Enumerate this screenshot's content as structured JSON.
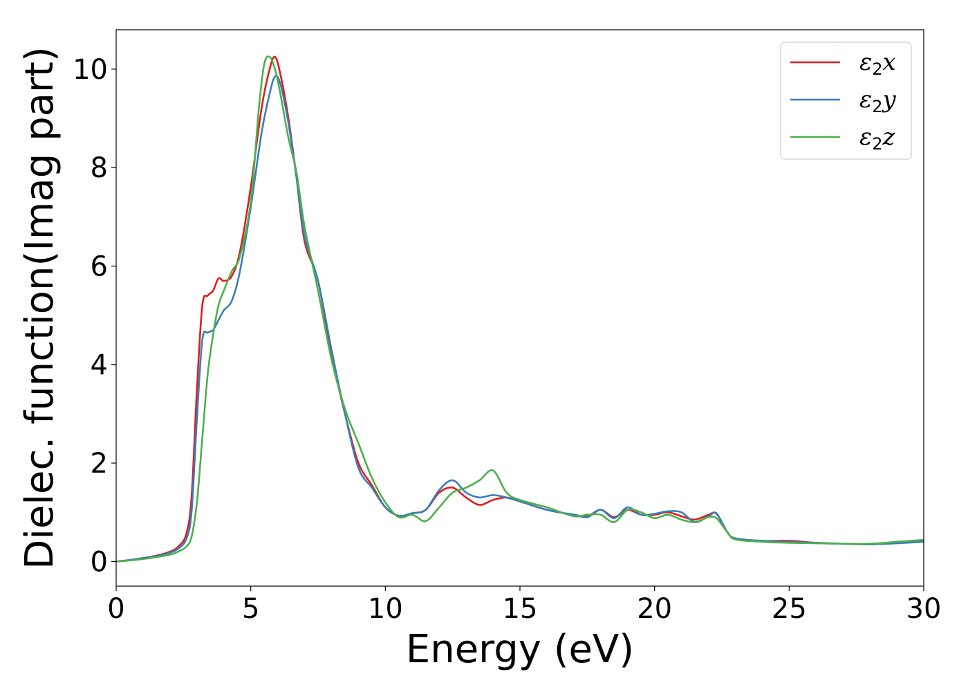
{
  "chart_data": {
    "type": "line",
    "xlabel": "Energy (eV)",
    "ylabel": "Dielec. function(Imag part)",
    "xlim": [
      0,
      30
    ],
    "ylim": [
      -0.5,
      10.8
    ],
    "x_ticks": [
      0,
      5,
      10,
      15,
      20,
      25,
      30
    ],
    "y_ticks": [
      0,
      2,
      4,
      6,
      8,
      10
    ],
    "grid": false,
    "legend_position": "top-right",
    "series": [
      {
        "name": "ε2x",
        "base": "ε",
        "sub": "2",
        "suffix": "x",
        "color": "#e41a1c",
        "x": [
          0,
          0.5,
          1.0,
          1.5,
          2.0,
          2.3,
          2.6,
          2.8,
          3.0,
          3.2,
          3.4,
          3.6,
          3.8,
          4.0,
          4.3,
          4.6,
          5.0,
          5.4,
          5.7,
          5.9,
          6.1,
          6.4,
          6.7,
          7.0,
          7.5,
          8.0,
          8.5,
          9.0,
          9.5,
          10.0,
          10.5,
          11.0,
          11.5,
          12.0,
          12.5,
          13.0,
          13.5,
          14.0,
          14.5,
          15.0,
          16.0,
          17.0,
          17.5,
          18.0,
          18.5,
          19.0,
          19.5,
          20.0,
          20.5,
          21.0,
          21.5,
          22.0,
          22.3,
          22.7,
          23.0,
          24.0,
          25.0,
          26.0,
          27.0,
          28.0,
          29.0,
          30.0
        ],
        "y": [
          0.0,
          0.03,
          0.07,
          0.12,
          0.2,
          0.3,
          0.55,
          1.3,
          3.5,
          5.2,
          5.4,
          5.5,
          5.75,
          5.7,
          5.8,
          6.3,
          7.6,
          9.2,
          10.0,
          10.25,
          9.9,
          9.0,
          7.8,
          6.5,
          5.7,
          4.2,
          3.0,
          2.0,
          1.55,
          1.1,
          0.93,
          0.98,
          1.05,
          1.4,
          1.5,
          1.3,
          1.15,
          1.25,
          1.3,
          1.22,
          1.05,
          0.95,
          0.92,
          1.05,
          0.9,
          1.05,
          0.95,
          0.95,
          1.0,
          0.92,
          0.85,
          0.95,
          0.97,
          0.6,
          0.47,
          0.42,
          0.42,
          0.38,
          0.36,
          0.35,
          0.38,
          0.42
        ]
      },
      {
        "name": "ε2y",
        "base": "ε",
        "sub": "2",
        "suffix": "y",
        "color": "#377eb8",
        "x": [
          0,
          0.5,
          1.0,
          1.5,
          2.0,
          2.3,
          2.6,
          2.8,
          3.0,
          3.2,
          3.4,
          3.6,
          3.8,
          4.0,
          4.3,
          4.6,
          5.0,
          5.4,
          5.7,
          5.9,
          6.1,
          6.4,
          6.7,
          7.0,
          7.5,
          8.0,
          8.5,
          9.0,
          9.5,
          10.0,
          10.5,
          11.0,
          11.5,
          12.0,
          12.5,
          13.0,
          13.5,
          14.0,
          14.5,
          15.0,
          16.0,
          17.0,
          17.5,
          18.0,
          18.5,
          19.0,
          19.5,
          20.0,
          20.5,
          21.0,
          21.5,
          22.0,
          22.3,
          22.7,
          23.0,
          24.0,
          25.0,
          26.0,
          27.0,
          28.0,
          29.0,
          30.0
        ],
        "y": [
          0.0,
          0.03,
          0.07,
          0.11,
          0.18,
          0.26,
          0.45,
          1.0,
          2.9,
          4.5,
          4.65,
          4.7,
          4.9,
          5.1,
          5.3,
          5.9,
          7.2,
          8.7,
          9.5,
          9.85,
          9.7,
          8.9,
          7.8,
          6.6,
          5.7,
          4.3,
          3.0,
          1.9,
          1.5,
          1.1,
          0.93,
          0.98,
          1.05,
          1.45,
          1.65,
          1.4,
          1.3,
          1.35,
          1.3,
          1.22,
          1.05,
          0.95,
          0.9,
          1.05,
          0.88,
          1.1,
          0.95,
          0.97,
          1.02,
          1.0,
          0.8,
          0.92,
          0.98,
          0.6,
          0.47,
          0.42,
          0.4,
          0.38,
          0.36,
          0.35,
          0.37,
          0.4
        ]
      },
      {
        "name": "ε2z",
        "base": "ε",
        "sub": "2",
        "suffix": "z",
        "color": "#4daf4a",
        "x": [
          0,
          0.5,
          1.0,
          1.5,
          2.0,
          2.3,
          2.6,
          2.8,
          3.0,
          3.2,
          3.4,
          3.6,
          3.8,
          4.0,
          4.3,
          4.6,
          5.0,
          5.3,
          5.5,
          5.7,
          5.9,
          6.1,
          6.4,
          6.7,
          7.0,
          7.5,
          8.0,
          8.5,
          9.0,
          9.5,
          10.0,
          10.5,
          11.0,
          11.5,
          12.0,
          12.5,
          13.0,
          13.5,
          14.0,
          14.5,
          15.0,
          16.0,
          17.0,
          17.5,
          18.0,
          18.5,
          19.0,
          19.5,
          20.0,
          20.5,
          21.0,
          21.5,
          22.0,
          22.3,
          22.7,
          23.0,
          24.0,
          25.0,
          26.0,
          27.0,
          28.0,
          29.0,
          30.0
        ],
        "y": [
          0.0,
          0.02,
          0.05,
          0.09,
          0.14,
          0.2,
          0.3,
          0.5,
          1.2,
          2.5,
          3.8,
          4.6,
          5.2,
          5.5,
          5.9,
          6.2,
          7.3,
          9.2,
          10.1,
          10.25,
          10.0,
          9.5,
          8.6,
          7.9,
          6.8,
          5.5,
          4.1,
          3.1,
          2.4,
          1.7,
          1.2,
          0.9,
          0.95,
          0.82,
          1.1,
          1.4,
          1.5,
          1.65,
          1.85,
          1.4,
          1.25,
          1.1,
          0.92,
          0.95,
          0.95,
          0.8,
          1.05,
          1.0,
          0.88,
          0.95,
          0.85,
          0.8,
          0.9,
          0.88,
          0.6,
          0.45,
          0.4,
          0.38,
          0.37,
          0.36,
          0.36,
          0.4,
          0.44
        ]
      }
    ]
  }
}
